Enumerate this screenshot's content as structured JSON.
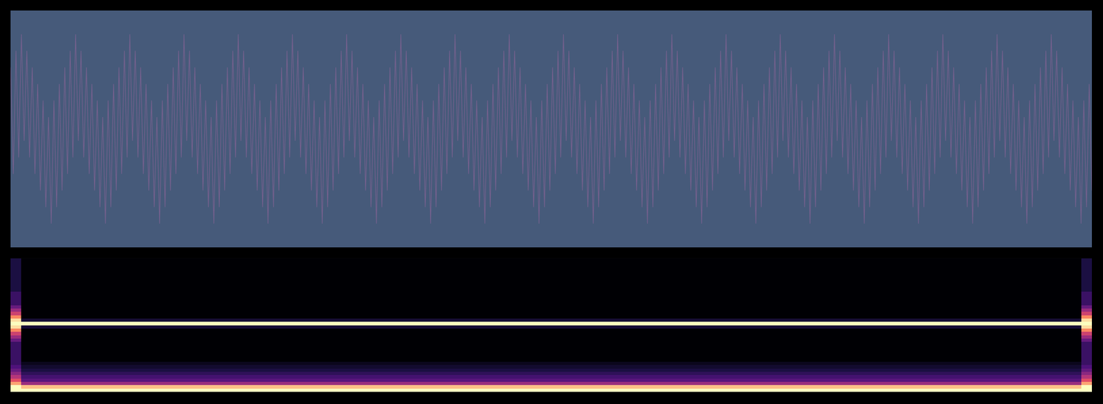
{
  "chart_data": [
    {
      "type": "line",
      "color": "#7a6190",
      "tick_labels": false,
      "xlim": [
        0,
        399
      ],
      "ylim": [
        -1,
        1
      ],
      "values": [
        0.52,
        -0.38,
        0.66,
        -0.24,
        0.8,
        -0.1,
        0.66,
        -0.24,
        0.52,
        -0.38,
        0.38,
        -0.52,
        0.24,
        -0.66,
        0.1,
        -0.8,
        0.24,
        -0.66,
        0.38,
        -0.52,
        0.52,
        -0.38,
        0.66,
        -0.24,
        0.8,
        -0.1,
        0.66,
        -0.24,
        0.52,
        -0.38,
        0.38,
        -0.52,
        0.24,
        -0.66,
        0.1,
        -0.8,
        0.24,
        -0.66,
        0.38,
        -0.52,
        0.52,
        -0.38,
        0.66,
        -0.24,
        0.8,
        -0.1,
        0.66,
        -0.24,
        0.52,
        -0.38,
        0.38,
        -0.52,
        0.24,
        -0.66,
        0.1,
        -0.8,
        0.24,
        -0.66,
        0.38,
        -0.52,
        0.52,
        -0.38,
        0.66,
        -0.24,
        0.8,
        -0.1,
        0.66,
        -0.24,
        0.52,
        -0.38,
        0.38,
        -0.52,
        0.24,
        -0.66,
        0.1,
        -0.8,
        0.24,
        -0.66,
        0.38,
        -0.52,
        0.52,
        -0.38,
        0.66,
        -0.24,
        0.8,
        -0.1,
        0.66,
        -0.24,
        0.52,
        -0.38,
        0.38,
        -0.52,
        0.24,
        -0.66,
        0.1,
        -0.8,
        0.24,
        -0.66,
        0.38,
        -0.52,
        0.52,
        -0.38,
        0.66,
        -0.24,
        0.8,
        -0.1,
        0.66,
        -0.24,
        0.52,
        -0.38,
        0.38,
        -0.52,
        0.24,
        -0.66,
        0.1,
        -0.8,
        0.24,
        -0.66,
        0.38,
        -0.52,
        0.52,
        -0.38,
        0.66,
        -0.24,
        0.8,
        -0.1,
        0.66,
        -0.24,
        0.52,
        -0.38,
        0.38,
        -0.52,
        0.24,
        -0.66,
        0.1,
        -0.8,
        0.24,
        -0.66,
        0.38,
        -0.52,
        0.52,
        -0.38,
        0.66,
        -0.24,
        0.8,
        -0.1,
        0.66,
        -0.24,
        0.52,
        -0.38,
        0.38,
        -0.52,
        0.24,
        -0.66,
        0.1,
        -0.8,
        0.24,
        -0.66,
        0.38,
        -0.52,
        0.52,
        -0.38,
        0.66,
        -0.24,
        0.8,
        -0.1,
        0.66,
        -0.24,
        0.52,
        -0.38,
        0.38,
        -0.52,
        0.24,
        -0.66,
        0.1,
        -0.8,
        0.24,
        -0.66,
        0.38,
        -0.52,
        0.52,
        -0.38,
        0.66,
        -0.24,
        0.8,
        -0.1,
        0.66,
        -0.24,
        0.52,
        -0.38,
        0.38,
        -0.52,
        0.24,
        -0.66,
        0.1,
        -0.8,
        0.24,
        -0.66,
        0.38,
        -0.52,
        0.52,
        -0.38,
        0.66,
        -0.24,
        0.8,
        -0.1,
        0.66,
        -0.24,
        0.52,
        -0.38,
        0.38,
        -0.52,
        0.24,
        -0.66,
        0.1,
        -0.8,
        0.24,
        -0.66,
        0.38,
        -0.52,
        0.52,
        -0.38,
        0.66,
        -0.24,
        0.8,
        -0.1,
        0.66,
        -0.24,
        0.52,
        -0.38,
        0.38,
        -0.52,
        0.24,
        -0.66,
        0.1,
        -0.8,
        0.24,
        -0.66,
        0.38,
        -0.52,
        0.52,
        -0.38,
        0.66,
        -0.24,
        0.8,
        -0.1,
        0.66,
        -0.24,
        0.52,
        -0.38,
        0.38,
        -0.52,
        0.24,
        -0.66,
        0.1,
        -0.8,
        0.24,
        -0.66,
        0.38,
        -0.52,
        0.52,
        -0.38,
        0.66,
        -0.24,
        0.8,
        -0.1,
        0.66,
        -0.24,
        0.52,
        -0.38,
        0.38,
        -0.52,
        0.24,
        -0.66,
        0.1,
        -0.8,
        0.24,
        -0.66,
        0.38,
        -0.52,
        0.52,
        -0.38,
        0.66,
        -0.24,
        0.8,
        -0.1,
        0.66,
        -0.24,
        0.52,
        -0.38,
        0.38,
        -0.52,
        0.24,
        -0.66,
        0.1,
        -0.8,
        0.24,
        -0.66,
        0.38,
        -0.52,
        0.52,
        -0.38,
        0.66,
        -0.24,
        0.8,
        -0.1,
        0.66,
        -0.24,
        0.52,
        -0.38,
        0.38,
        -0.52,
        0.24,
        -0.66,
        0.1,
        -0.8,
        0.24,
        -0.66,
        0.38,
        -0.52,
        0.52,
        -0.38,
        0.66,
        -0.24,
        0.8,
        -0.1,
        0.66,
        -0.24,
        0.52,
        -0.38,
        0.38,
        -0.52,
        0.24,
        -0.66,
        0.1,
        -0.8,
        0.24,
        -0.66,
        0.38,
        -0.52,
        0.52,
        -0.38,
        0.66,
        -0.24,
        0.8,
        -0.1,
        0.66,
        -0.24,
        0.52,
        -0.38,
        0.38,
        -0.52,
        0.24,
        -0.66,
        0.1,
        -0.8,
        0.24,
        -0.66,
        0.38,
        -0.52,
        0.52,
        -0.38,
        0.66,
        -0.24,
        0.8,
        -0.1,
        0.66,
        -0.24,
        0.52,
        -0.38,
        0.38,
        -0.52,
        0.24,
        -0.66,
        0.1,
        -0.8,
        0.24,
        -0.66,
        0.38,
        -0.52,
        0.52,
        -0.38,
        0.66,
        -0.24,
        0.8,
        -0.1,
        0.66,
        -0.24,
        0.52,
        -0.38,
        0.38,
        -0.52,
        0.24,
        -0.66,
        0.1,
        -0.8,
        0.24,
        -0.66,
        0.38,
        -0.52
      ]
    },
    {
      "type": "heatmap",
      "tick_labels": false,
      "x": [
        0,
        1,
        99,
        100
      ],
      "xlim": [
        0,
        100
      ],
      "ylim": [
        -0.5,
        39.5
      ],
      "zlim": [
        -80,
        0
      ],
      "z": [
        [
          0,
          0,
          0
        ],
        [
          0,
          -10,
          0
        ],
        [
          -15,
          -45,
          -15
        ],
        [
          -30,
          -58,
          -30
        ],
        [
          -40,
          -62,
          -40
        ],
        [
          -48,
          -66,
          -48
        ],
        [
          -55,
          -70,
          -55
        ],
        [
          -60,
          -73,
          -60
        ],
        [
          -64,
          -76,
          -64
        ],
        [
          -64,
          -80,
          -64
        ],
        [
          -64,
          -80,
          -64
        ],
        [
          -64,
          -80,
          -64
        ],
        [
          -64,
          -80,
          -64
        ],
        [
          -64,
          -80,
          -64
        ],
        [
          -64,
          -80,
          -64
        ],
        [
          -55,
          -80,
          -55
        ],
        [
          -45,
          -80,
          -45
        ],
        [
          -35,
          -80,
          -35
        ],
        [
          -20,
          -80,
          -20
        ],
        [
          -5,
          -72,
          -5
        ],
        [
          0,
          0,
          0
        ],
        [
          -5,
          -72,
          -5
        ],
        [
          -20,
          -80,
          -20
        ],
        [
          -35,
          -80,
          -35
        ],
        [
          -45,
          -80,
          -45
        ],
        [
          -55,
          -80,
          -55
        ],
        [
          -64,
          -80,
          -64
        ],
        [
          -64,
          -80,
          -64
        ],
        [
          -64,
          -80,
          -64
        ],
        [
          -64,
          -80,
          -64
        ],
        [
          -70,
          -80,
          -70
        ],
        [
          -70,
          -80,
          -70
        ],
        [
          -70,
          -80,
          -70
        ],
        [
          -70,
          -80,
          -70
        ],
        [
          -70,
          -80,
          -70
        ],
        [
          -70,
          -80,
          -70
        ],
        [
          -70,
          -80,
          -70
        ],
        [
          -70,
          -80,
          -70
        ],
        [
          -70,
          -80,
          -70
        ],
        [
          -70,
          -80,
          -70
        ]
      ]
    }
  ]
}
